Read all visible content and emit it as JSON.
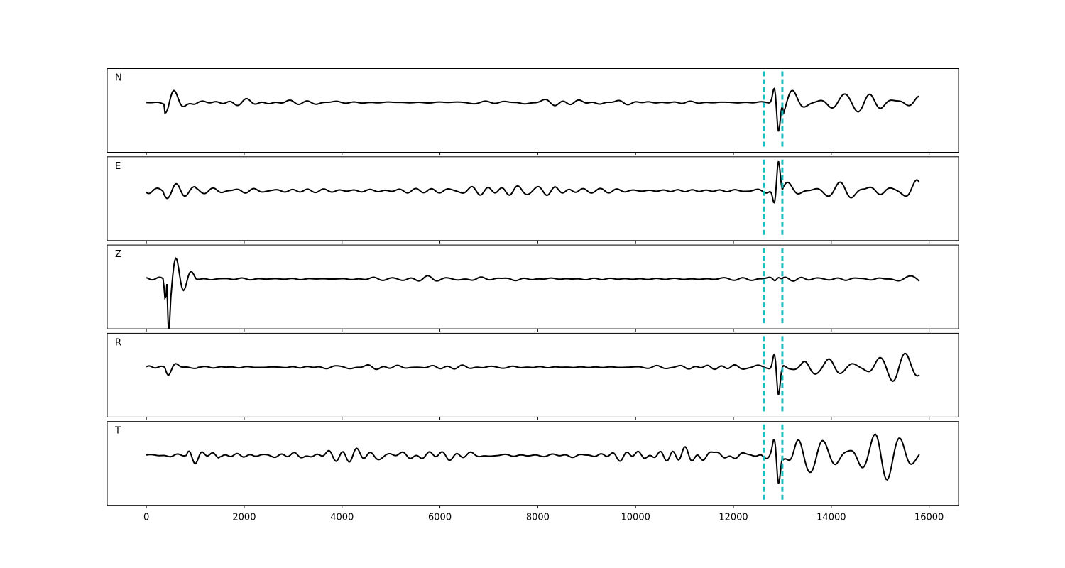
{
  "chart_data": {
    "type": "line",
    "title": "",
    "xlabel": "",
    "ylabel": "",
    "xlim": [
      -800,
      16600
    ],
    "x_ticks": [
      0,
      2000,
      4000,
      6000,
      8000,
      10000,
      12000,
      14000,
      16000
    ],
    "x_tick_labels": [
      "0",
      "2000",
      "4000",
      "6000",
      "8000",
      "10000",
      "12000",
      "14000",
      "16000"
    ],
    "sample_count": 15800,
    "trace_color": "#000000",
    "marker_color": "#1ABFC0",
    "markers": [
      {
        "x": 12620,
        "style": "dashed"
      },
      {
        "x": 13000,
        "style": "dashed"
      }
    ],
    "panels": [
      {
        "label": "N",
        "noise_amp": 0.1,
        "signal_amp": 0.45,
        "peak_amp": -1.0,
        "burst_x": 450,
        "burst_amp": 0.35
      },
      {
        "label": "E",
        "noise_amp": 0.16,
        "signal_amp": 0.55,
        "peak_amp": 1.0,
        "burst_x": 420,
        "burst_amp": 0.3
      },
      {
        "label": "Z",
        "noise_amp": 0.08,
        "signal_amp": 0.12,
        "peak_amp": 0.1,
        "burst_x": 420,
        "burst_amp": 1.0
      },
      {
        "label": "R",
        "noise_amp": 0.09,
        "signal_amp": 0.45,
        "peak_amp": -1.0,
        "burst_x": 450,
        "burst_amp": 0.3
      },
      {
        "label": "T",
        "noise_amp": 0.22,
        "signal_amp": 0.75,
        "peak_amp": -0.9,
        "burst_x": 900,
        "burst_amp": 0.25
      }
    ],
    "grid": false,
    "legend": "none"
  }
}
